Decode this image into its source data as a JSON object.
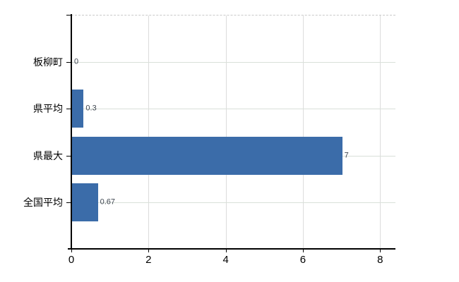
{
  "chart_data": {
    "type": "bar",
    "orientation": "horizontal",
    "title": "",
    "xlabel": "",
    "ylabel": "",
    "categories": [
      "板柳町",
      "県平均",
      "県最大",
      "全国平均"
    ],
    "values": [
      0,
      0.3,
      7,
      0.67
    ],
    "value_labels": [
      "0",
      "0.3",
      "7",
      "0.67"
    ],
    "x_ticks": [
      0,
      2,
      4,
      6,
      8
    ],
    "xlim": [
      0,
      8.4
    ],
    "grid": true,
    "legend": false,
    "colors": {
      "bar": "#3b6ca9",
      "axis": "#000000",
      "vertical_gridline": "#dcdcdc",
      "horizontal_gridline": "#d9e0d9",
      "top_border": "#c9c9c9",
      "tick_label": "#000000",
      "category_label": "#000000",
      "value_label": "#3f4650",
      "background": "#ffffff"
    }
  }
}
